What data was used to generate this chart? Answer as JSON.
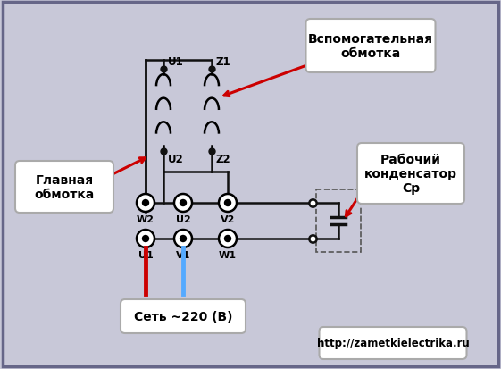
{
  "bg_color": "#c8c8d8",
  "fig_bg_color": "#c8c8d8",
  "border_color": "#666688",
  "title_bottom": "Сеть ~220 (В)",
  "url_text": "http://zametkielectrika.ru",
  "label_glavnaya": "Главная\nобмотка",
  "label_vspomog": "Вспомогательная\nобмотка",
  "label_kondensator": "Рабочий\nконденсатор\nСр",
  "wire_red_color": "#cc0000",
  "wire_blue_color": "#55aaff",
  "arrow_color": "#cc0000",
  "line_color": "#111111",
  "box_fill": "#ffffff",
  "box_edge": "#aaaaaa"
}
